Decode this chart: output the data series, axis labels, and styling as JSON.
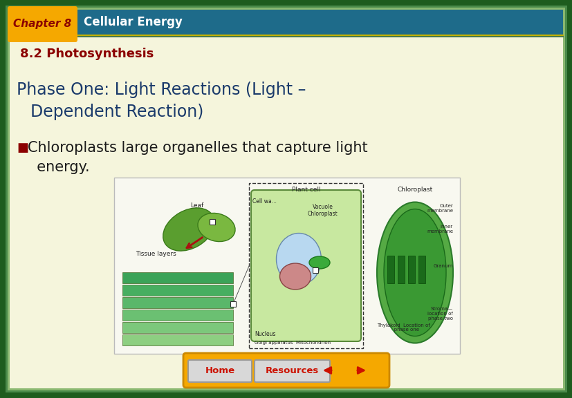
{
  "header_bg_color": "#1e6b8a",
  "header_text": "Cellular Energy",
  "chapter_box_color": "#f5a800",
  "chapter_text": "Chapter 8",
  "chapter_text_color": "#8b0000",
  "header_text_color": "#ffffff",
  "main_bg_color": "#f5f5dc",
  "outer_border_color": "#1e5c1e",
  "inner_border_color": "#4a8a4a",
  "subtitle_text": "8.2 Photosynthesis",
  "subtitle_color": "#8b0000",
  "phase_line1": "Phase One: Light Reactions (Light –",
  "phase_line2": "  Dependent Reaction)",
  "phase_color": "#1a3a6b",
  "bullet_square_color": "#8b0000",
  "bullet_text_line1": "Chloroplasts large organelles that capture light",
  "bullet_text_line2": "  energy.",
  "bullet_text_color": "#1a1a1a",
  "footer_bg_color": "#f5a800",
  "home_text": "Home",
  "resources_text": "Resources",
  "img_border_color": "#bbbbbb",
  "img_bg_color": "#f8f8f0"
}
